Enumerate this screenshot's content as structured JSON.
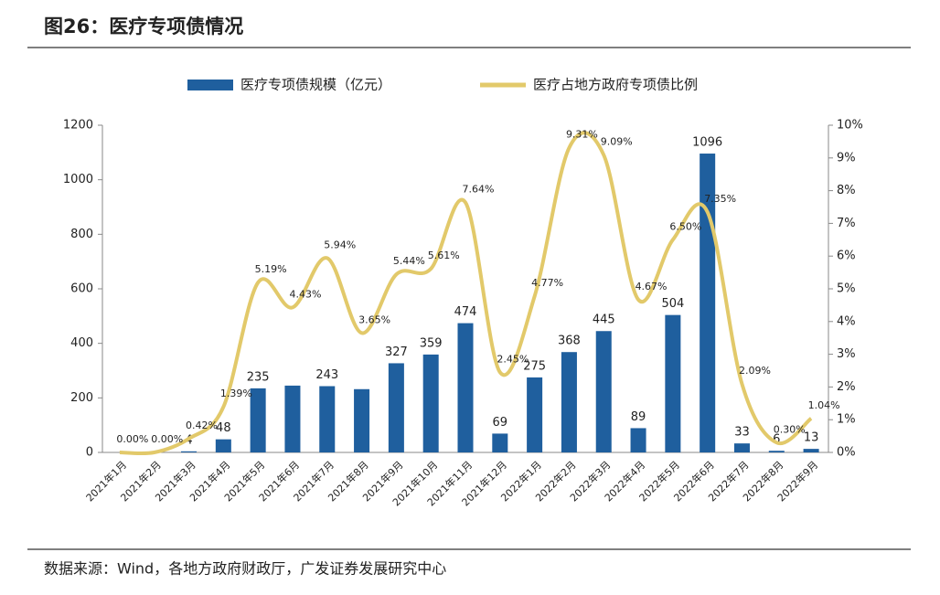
{
  "chart_data": {
    "type": "bar_line",
    "title": "图26：医疗专项债情况",
    "source": "数据来源：Wind，各地方政府财政厅，广发证券发展研究中心",
    "categories": [
      "2021年1月",
      "2021年2月",
      "2021年3月",
      "2021年4月",
      "2021年5月",
      "2021年6月",
      "2021年7月",
      "2021年8月",
      "2021年9月",
      "2021年10月",
      "2021年11月",
      "2021年12月",
      "2022年1月",
      "2022年2月",
      "2022年3月",
      "2022年4月",
      "2022年5月",
      "2022年6月",
      "2022年7月",
      "2022年8月",
      "2022年9月"
    ],
    "series": [
      {
        "name": "医疗专项债规模（亿元）",
        "color": "#1f5f9e",
        "type": "bar",
        "values": [
          0,
          0,
          4,
          48,
          235,
          245,
          243,
          232,
          327,
          359,
          474,
          69,
          275,
          368,
          445,
          89,
          504,
          1096,
          33,
          6,
          13
        ],
        "value_labels": [
          null,
          null,
          "4",
          "48",
          "235",
          null,
          "243",
          null,
          "327",
          "359",
          "474",
          "69",
          "275",
          "368",
          "445",
          "89",
          "504",
          "1096",
          "33",
          "6",
          "13"
        ]
      },
      {
        "name": "医疗占地方政府专项债比例",
        "color": "#e2c96a",
        "type": "line",
        "axis": "y2",
        "values": [
          0,
          0,
          0.42,
          1.39,
          5.19,
          4.43,
          5.94,
          3.65,
          5.44,
          5.61,
          7.64,
          2.45,
          4.77,
          9.31,
          9.09,
          4.67,
          6.5,
          7.35,
          2.09,
          0.3,
          1.04
        ],
        "value_labels": [
          "0.00%",
          "0.00%",
          "0.42%",
          "1.39%",
          "5.19%",
          "4.43%",
          "5.94%",
          "3.65%",
          "5.44%",
          "5.61%",
          "7.64%",
          "2.45%",
          "4.77%",
          "9.31%",
          "9.09%",
          "4.67%",
          "6.50%",
          "7.35%",
          "2.09%",
          "0.30%",
          "1.04%"
        ]
      }
    ],
    "ylim": [
      0,
      1200
    ],
    "yticks": [
      0,
      200,
      400,
      600,
      800,
      1000,
      1200
    ],
    "y2lim": [
      0,
      10
    ],
    "y2ticks": [
      {
        "value": 0,
        "label": "0%"
      },
      {
        "value": 1,
        "label": "1%"
      },
      {
        "value": 2,
        "label": "2%"
      },
      {
        "value": 3,
        "label": "3%"
      },
      {
        "value": 4,
        "label": "4%"
      },
      {
        "value": 5,
        "label": "5%"
      },
      {
        "value": 6,
        "label": "6%"
      },
      {
        "value": 7,
        "label": "7%"
      },
      {
        "value": 8,
        "label": "8%"
      },
      {
        "value": 9,
        "label": "9%"
      },
      {
        "value": 10,
        "label": "10%"
      }
    ]
  }
}
